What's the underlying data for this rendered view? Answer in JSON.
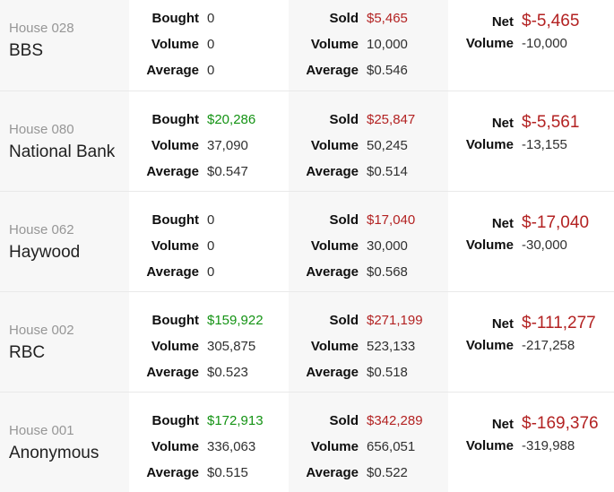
{
  "colors": {
    "positive": "#149314",
    "negative": "#b32222",
    "shaded_column_bg": "#f7f7f7",
    "row_divider": "#e9e9e9",
    "house_id_text": "#969696",
    "house_name_text": "#212121",
    "label_text": "#0f0f0f",
    "value_text": "#303030"
  },
  "labels": {
    "bought": "Bought",
    "sold": "Sold",
    "net": "Net",
    "volume": "Volume",
    "average": "Average"
  },
  "rows": [
    {
      "house_id": "House 028",
      "house_name": "BBS",
      "bought": {
        "amount": "0",
        "tone": "neutral",
        "volume": "0",
        "average": "0"
      },
      "sold": {
        "amount": "$5,465",
        "tone": "negative",
        "volume": "10,000",
        "average": "$0.546"
      },
      "net": {
        "amount": "$-5,465",
        "tone": "negative",
        "volume": "-10,000"
      }
    },
    {
      "house_id": "House 080",
      "house_name": "National Bank",
      "bought": {
        "amount": "$20,286",
        "tone": "positive",
        "volume": "37,090",
        "average": "$0.547"
      },
      "sold": {
        "amount": "$25,847",
        "tone": "negative",
        "volume": "50,245",
        "average": "$0.514"
      },
      "net": {
        "amount": "$-5,561",
        "tone": "negative",
        "volume": "-13,155"
      }
    },
    {
      "house_id": "House 062",
      "house_name": "Haywood",
      "bought": {
        "amount": "0",
        "tone": "neutral",
        "volume": "0",
        "average": "0"
      },
      "sold": {
        "amount": "$17,040",
        "tone": "negative",
        "volume": "30,000",
        "average": "$0.568"
      },
      "net": {
        "amount": "$-17,040",
        "tone": "negative",
        "volume": "-30,000"
      }
    },
    {
      "house_id": "House 002",
      "house_name": "RBC",
      "bought": {
        "amount": "$159,922",
        "tone": "positive",
        "volume": "305,875",
        "average": "$0.523"
      },
      "sold": {
        "amount": "$271,199",
        "tone": "negative",
        "volume": "523,133",
        "average": "$0.518"
      },
      "net": {
        "amount": "$-111,277",
        "tone": "negative",
        "volume": "-217,258"
      }
    },
    {
      "house_id": "House 001",
      "house_name": "Anonymous",
      "bought": {
        "amount": "$172,913",
        "tone": "positive",
        "volume": "336,063",
        "average": "$0.515"
      },
      "sold": {
        "amount": "$342,289",
        "tone": "negative",
        "volume": "656,051",
        "average": "$0.522"
      },
      "net": {
        "amount": "$-169,376",
        "tone": "negative",
        "volume": "-319,988"
      }
    }
  ]
}
